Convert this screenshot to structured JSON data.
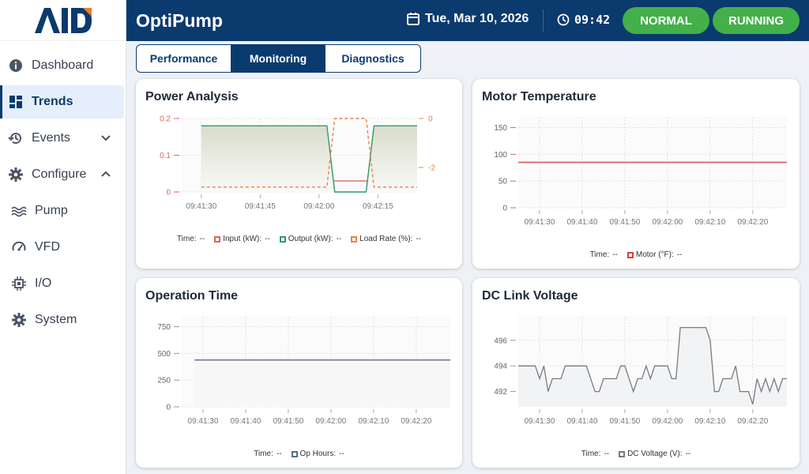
{
  "app": {
    "logo_text": "AID",
    "title": "OptiPump"
  },
  "header": {
    "date": "Tue, Mar 10, 2026",
    "time": "09:42",
    "status_normal": "NORMAL",
    "status_running": "RUNNING",
    "accent_color": "#0b3a6e",
    "status_color": "#43b04a"
  },
  "sidebar": {
    "items": [
      {
        "label": "Dashboard",
        "icon": "info-circle-icon"
      },
      {
        "label": "Trends",
        "icon": "dashboard-grid-icon",
        "active": true
      },
      {
        "label": "Events",
        "icon": "history-icon",
        "chevron": "down"
      },
      {
        "label": "Configure",
        "icon": "gear-icon",
        "chevron": "up"
      },
      {
        "label": "Pump",
        "icon": "waves-icon"
      },
      {
        "label": "VFD",
        "icon": "gauge-icon"
      },
      {
        "label": "I/O",
        "icon": "chip-icon"
      },
      {
        "label": "System",
        "icon": "gear-icon"
      }
    ]
  },
  "tabs": [
    {
      "label": "Performance"
    },
    {
      "label": "Monitoring",
      "active": true
    },
    {
      "label": "Diagnostics"
    }
  ],
  "cards": {
    "power": {
      "title": "Power Analysis",
      "legend_time": "Time:",
      "legend_time_value": "--",
      "legend": [
        {
          "label": "Input (kW):",
          "value": "--",
          "color": "#e0645a"
        },
        {
          "label": "Output (kW):",
          "value": "--",
          "color": "#2e9a6a"
        },
        {
          "label": "Load Rate (%):",
          "value": "--",
          "color": "#e8824a"
        }
      ]
    },
    "motor": {
      "title": "Motor Temperature",
      "legend_time": "Time:",
      "legend_time_value": "--",
      "legend": [
        {
          "label": "Motor (°F):",
          "value": "--",
          "color": "#d94040"
        }
      ]
    },
    "optime": {
      "title": "Operation Time",
      "legend_time": "Time:",
      "legend_time_value": "--",
      "legend": [
        {
          "label": "Op Hours:",
          "value": "--",
          "color": "#5b6b84"
        }
      ]
    },
    "dc": {
      "title": "DC Link Voltage",
      "legend_time": "Time:",
      "legend_time_value": "--",
      "legend": [
        {
          "label": "DC Voltage (V):",
          "value": "--",
          "color": "#777a80"
        }
      ]
    }
  },
  "chart_data": [
    {
      "type": "line",
      "id": "power",
      "title": "Power Analysis",
      "x_ticks": [
        "09:41:30",
        "09:41:45",
        "09:42:00",
        "09:42:15"
      ],
      "y_ticks": [
        "0.2",
        "0.1",
        "0"
      ],
      "y2_ticks": [
        "0",
        "-2"
      ],
      "ylim": [
        0,
        0.2
      ],
      "y2lim": [
        -3,
        0
      ],
      "series": [
        {
          "name": "Input (kW)",
          "color": "#e0645a",
          "x": [
            "09:41:30",
            "09:42:25"
          ],
          "y": [
            0.03,
            0.03
          ]
        },
        {
          "name": "Output (kW)",
          "color": "#2e9a6a",
          "x": [
            "09:41:30",
            "09:42:02",
            "09:42:04",
            "09:42:12",
            "09:42:14",
            "09:42:25"
          ],
          "y": [
            0.18,
            0.18,
            0.0,
            0.0,
            0.18,
            0.18
          ]
        },
        {
          "name": "Load Rate (%)",
          "color": "#e8824a",
          "x": [
            "09:41:30",
            "09:42:02",
            "09:42:04",
            "09:42:12",
            "09:42:14",
            "09:42:25"
          ],
          "y": [
            -2.8,
            -2.8,
            0,
            0,
            -2.8,
            -2.8
          ]
        }
      ]
    },
    {
      "type": "line",
      "id": "motor",
      "title": "Motor Temperature",
      "x_ticks": [
        "09:41:30",
        "09:41:40",
        "09:41:50",
        "09:42:00",
        "09:42:10",
        "09:42:20"
      ],
      "y_ticks": [
        "150",
        "100",
        "50",
        "0"
      ],
      "ylim": [
        0,
        170
      ],
      "series": [
        {
          "name": "Motor (°F)",
          "color": "#e06060",
          "x": [
            "09:41:25",
            "09:42:28"
          ],
          "y": [
            85,
            85
          ]
        }
      ]
    },
    {
      "type": "line",
      "id": "optime",
      "title": "Operation Time",
      "x_ticks": [
        "09:41:30",
        "09:41:40",
        "09:41:50",
        "09:42:00",
        "09:42:10",
        "09:42:20"
      ],
      "y_ticks": [
        "750",
        "500",
        "250",
        "0"
      ],
      "ylim": [
        0,
        850
      ],
      "series": [
        {
          "name": "Op Hours",
          "color": "#5b6b84",
          "x": [
            "09:41:28",
            "09:42:28"
          ],
          "y": [
            438,
            438
          ]
        }
      ]
    },
    {
      "type": "line",
      "id": "dc",
      "title": "DC Link Voltage",
      "x_ticks": [
        "09:41:30",
        "09:41:40",
        "09:41:50",
        "09:42:00",
        "09:42:10",
        "09:42:20"
      ],
      "y_ticks": [
        "496",
        "494",
        "492"
      ],
      "ylim": [
        490.8,
        497.9
      ],
      "series": [
        {
          "name": "DC Voltage (V)",
          "color": "#777a80",
          "x": [
            25,
            26,
            27,
            28,
            29,
            30,
            31,
            32,
            33,
            34,
            35,
            36,
            37,
            38,
            39,
            40,
            41,
            42,
            43,
            44,
            45,
            46,
            47,
            48,
            49,
            50,
            51,
            52,
            53,
            54,
            55,
            56,
            57,
            58,
            59,
            60,
            61,
            62,
            63,
            64,
            65,
            66,
            67,
            68,
            69,
            70,
            71,
            72,
            73,
            74,
            75,
            76,
            77,
            78,
            79,
            80,
            81,
            82,
            83,
            84,
            85,
            86,
            87,
            88
          ],
          "y": [
            494,
            494,
            494,
            494,
            494,
            493,
            494,
            492,
            493,
            493,
            493,
            494,
            494,
            494,
            494,
            494,
            494,
            493,
            492,
            492,
            493,
            493,
            493,
            493,
            494,
            494,
            493,
            492,
            493,
            493,
            494,
            493,
            494,
            494,
            494,
            494,
            493,
            493,
            497,
            497,
            497,
            497,
            497,
            497,
            497,
            496,
            492,
            492,
            493,
            493,
            493,
            494,
            492,
            492,
            492,
            491,
            493,
            492,
            493,
            492,
            493,
            492,
            493,
            493
          ]
        }
      ]
    }
  ]
}
